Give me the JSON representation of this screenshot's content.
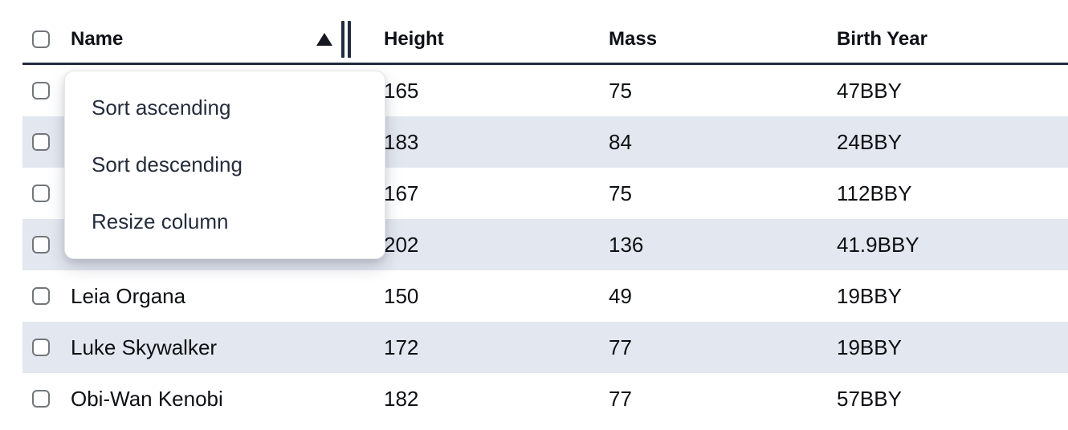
{
  "table": {
    "columns": [
      {
        "key": "name",
        "label": "Name"
      },
      {
        "key": "height",
        "label": "Height"
      },
      {
        "key": "mass",
        "label": "Mass"
      },
      {
        "key": "birth_year",
        "label": "Birth Year"
      }
    ],
    "sort": {
      "column": "name",
      "direction": "ascending",
      "indicator": "triangle-up"
    },
    "rows": [
      {
        "name": "",
        "height": "165",
        "mass": "75",
        "birth_year": "47BBY"
      },
      {
        "name": "",
        "height": "183",
        "mass": "84",
        "birth_year": "24BBY"
      },
      {
        "name": "",
        "height": "167",
        "mass": "75",
        "birth_year": "112BBY"
      },
      {
        "name": "",
        "height": "202",
        "mass": "136",
        "birth_year": "41.9BBY"
      },
      {
        "name": "Leia Organa",
        "height": "150",
        "mass": "49",
        "birth_year": "19BBY"
      },
      {
        "name": "Luke Skywalker",
        "height": "172",
        "mass": "77",
        "birth_year": "19BBY"
      },
      {
        "name": "Obi-Wan Kenobi",
        "height": "182",
        "mass": "77",
        "birth_year": "57BBY"
      }
    ]
  },
  "context_menu": {
    "items": [
      {
        "label": "Sort ascending"
      },
      {
        "label": "Sort descending"
      },
      {
        "label": "Resize column"
      }
    ]
  },
  "icons": {
    "sort_indicator": "triangle-up-icon",
    "column_resize": "double-bar-handle"
  },
  "colors": {
    "stripe_bg": "#e3e7ef",
    "header_border": "#212d3e",
    "cell_text": "#0d0f13",
    "menu_text": "#242c3c",
    "checkbox_border": "#72767b"
  }
}
